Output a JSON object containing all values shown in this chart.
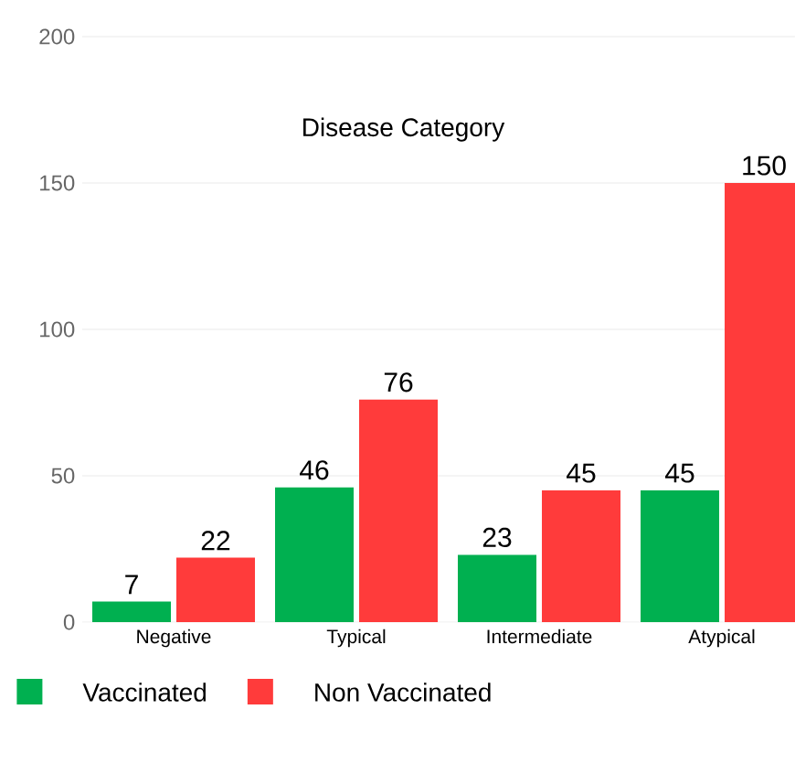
{
  "chart_data": {
    "type": "bar",
    "title": "Disease Category",
    "categories": [
      "Negative",
      "Typical",
      "Intermediate",
      "Atypical"
    ],
    "series": [
      {
        "name": "Vaccinated",
        "color": "#00b050",
        "values": [
          7,
          46,
          23,
          45
        ]
      },
      {
        "name": "Non Vaccinated",
        "color": "#ff3b3b",
        "values": [
          22,
          76,
          45,
          150
        ]
      }
    ],
    "ylim": [
      0,
      200
    ],
    "yticks": [
      0,
      50,
      100,
      150,
      200
    ],
    "grid": "y",
    "data_labels": true,
    "legend": "bottom"
  }
}
